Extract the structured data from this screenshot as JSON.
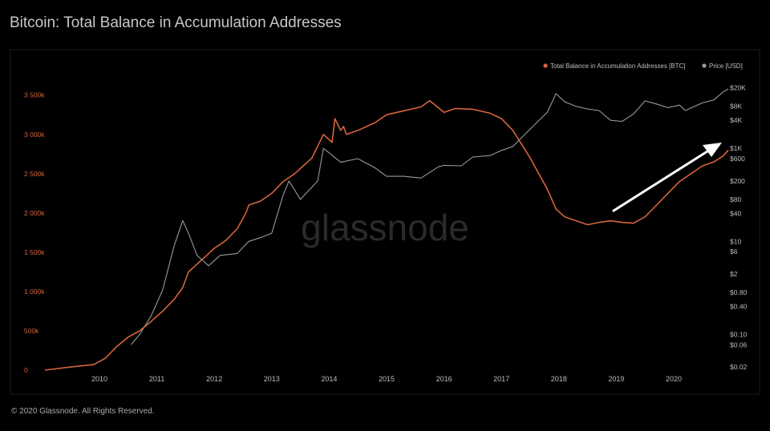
{
  "title": "Bitcoin: Total Balance in Accumulation Addresses",
  "footer": "© 2020 Glassnode. All Rights Reserved.",
  "watermark": "glassnode",
  "colors": {
    "balance": "#d4643c",
    "price": "#9a9a9a",
    "background": "#000000",
    "arrow": "#ffffff"
  },
  "chart_data": {
    "type": "line",
    "title": "Bitcoin: Total Balance in Accumulation Addresses",
    "legend": {
      "placement": "top-right",
      "entries": [
        "Total Balance in Accumulation Addresses [BTC]",
        "Price [USD]"
      ]
    },
    "x_ticks": [
      "2010",
      "2011",
      "2012",
      "2013",
      "2014",
      "2015",
      "2016",
      "2017",
      "2018",
      "2019",
      "2020"
    ],
    "y_left": {
      "ticks": [
        "0",
        "500k",
        "1 000k",
        "1 500k",
        "2 000k",
        "2 500k",
        "3 000k",
        "3 500k"
      ],
      "range": [
        0,
        3650000
      ]
    },
    "y_right": {
      "scale": "log",
      "ticks": [
        "$0.02",
        "$0.06",
        "$0.10",
        "$0.40",
        "$0.80",
        "$2",
        "$6",
        "$10",
        "$40",
        "$80",
        "$200",
        "$600",
        "$1K",
        "$4K",
        "$8K",
        "$20K"
      ],
      "range": [
        0.02,
        25000
      ]
    },
    "series": [
      {
        "name": "Total Balance in Accumulation Addresses [BTC]",
        "axis": "left",
        "x": [
          2009.05,
          2009.5,
          2009.9,
          2010.1,
          2010.3,
          2010.5,
          2010.7,
          2010.9,
          2011.1,
          2011.3,
          2011.45,
          2011.55,
          2011.7,
          2011.85,
          2012.0,
          2012.2,
          2012.4,
          2012.55,
          2012.6,
          2012.8,
          2013.0,
          2013.2,
          2013.4,
          2013.7,
          2013.9,
          2014.05,
          2014.1,
          2014.2,
          2014.25,
          2014.3,
          2014.5,
          2014.8,
          2015.0,
          2015.3,
          2015.6,
          2015.75,
          2016.0,
          2016.2,
          2016.5,
          2016.8,
          2017.0,
          2017.2,
          2017.5,
          2017.8,
          2017.95,
          2018.1,
          2018.3,
          2018.5,
          2018.7,
          2018.9,
          2019.1,
          2019.3,
          2019.5,
          2019.7,
          2019.9,
          2020.1,
          2020.3,
          2020.5,
          2020.7,
          2020.85,
          2020.95
        ],
        "values": [
          0,
          40000,
          70000,
          150000,
          300000,
          420000,
          500000,
          620000,
          750000,
          900000,
          1050000,
          1250000,
          1350000,
          1450000,
          1550000,
          1650000,
          1800000,
          2000000,
          2100000,
          2150000,
          2250000,
          2400000,
          2500000,
          2700000,
          3000000,
          2900000,
          3200000,
          3050000,
          3100000,
          3000000,
          3050000,
          3150000,
          3250000,
          3300000,
          3350000,
          3430000,
          3280000,
          3330000,
          3320000,
          3270000,
          3200000,
          3050000,
          2700000,
          2300000,
          2050000,
          1950000,
          1900000,
          1850000,
          1880000,
          1900000,
          1880000,
          1870000,
          1950000,
          2100000,
          2250000,
          2400000,
          2500000,
          2600000,
          2650000,
          2720000,
          2800000
        ]
      },
      {
        "name": "Price [USD]",
        "axis": "right",
        "x": [
          2010.55,
          2010.7,
          2010.9,
          2011.1,
          2011.3,
          2011.45,
          2011.55,
          2011.7,
          2011.9,
          2012.1,
          2012.4,
          2012.6,
          2012.8,
          2013.0,
          2013.2,
          2013.3,
          2013.5,
          2013.8,
          2013.9,
          2014.0,
          2014.2,
          2014.5,
          2014.8,
          2015.0,
          2015.3,
          2015.6,
          2015.9,
          2016.0,
          2016.3,
          2016.5,
          2016.8,
          2017.0,
          2017.2,
          2017.5,
          2017.8,
          2017.95,
          2018.1,
          2018.3,
          2018.5,
          2018.7,
          2018.9,
          2019.1,
          2019.3,
          2019.5,
          2019.7,
          2019.9,
          2020.1,
          2020.2,
          2020.5,
          2020.7,
          2020.85,
          2020.95
        ],
        "values": [
          0.06,
          0.1,
          0.25,
          0.9,
          8,
          28,
          15,
          5,
          3,
          5,
          5.5,
          10,
          12,
          15,
          100,
          200,
          80,
          200,
          1000,
          800,
          500,
          600,
          380,
          250,
          250,
          230,
          400,
          430,
          420,
          650,
          700,
          900,
          1100,
          2600,
          6000,
          15000,
          10000,
          8000,
          7000,
          6500,
          4000,
          3800,
          5500,
          10500,
          9000,
          7500,
          8500,
          6500,
          9500,
          11000,
          16000,
          19000
        ]
      }
    ],
    "annotation": "upward arrow"
  }
}
